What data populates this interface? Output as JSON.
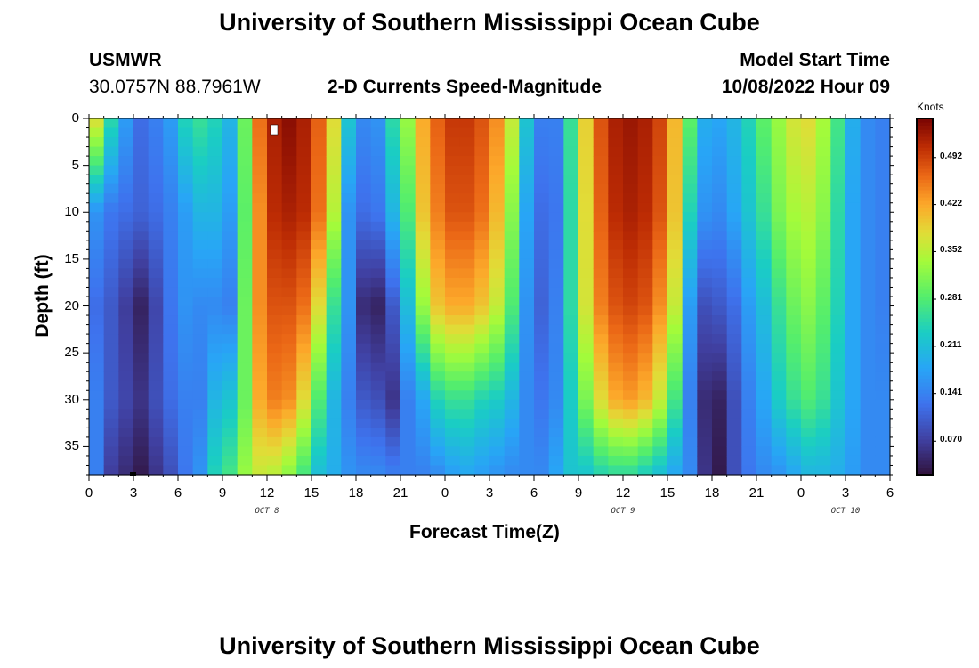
{
  "chart_data": {
    "type": "heatmap",
    "title": "University of Southern Mississippi Ocean Cube",
    "station": "USMWR",
    "location": "30.0757N  88.7961W",
    "subtitle": "2-D Currents Speed-Magnitude",
    "model_start_label": "Model Start Time",
    "model_start_value": "10/08/2022 Hour 09",
    "xlabel": "Forecast Time(Z)",
    "ylabel": "Depth (ft)",
    "x_range_hours": [
      0,
      54
    ],
    "x_tick_values": [
      0,
      3,
      6,
      9,
      12,
      15,
      18,
      21,
      24,
      27,
      30,
      33,
      36,
      39,
      42,
      45,
      48,
      51,
      54
    ],
    "x_tick_labels": [
      "0",
      "3",
      "6",
      "9",
      "12",
      "15",
      "18",
      "21",
      "0",
      "3",
      "6",
      "9",
      "12",
      "15",
      "18",
      "21",
      "0",
      "3",
      "6"
    ],
    "date_labels": [
      {
        "text": "OCT 8",
        "hour": 12
      },
      {
        "text": "OCT 9",
        "hour": 36
      },
      {
        "text": "OCT 10",
        "hour": 51
      }
    ],
    "y_range_ft": [
      0,
      38
    ],
    "y_ticks": [
      0,
      5,
      10,
      15,
      20,
      25,
      30,
      35
    ],
    "colorbar": {
      "label": "Knots",
      "range": [
        0.02,
        0.55
      ],
      "ticks": [
        "0.492",
        "0.422",
        "0.352",
        "0.281",
        "0.211",
        "0.141",
        "0.070"
      ],
      "tick_values": [
        0.492,
        0.422,
        0.352,
        0.281,
        0.211,
        0.141,
        0.07
      ]
    },
    "speed_field_knots": {
      "description": "approximate current speed by hour (rows) vs depth samples",
      "depth_samples_ft": [
        0,
        10,
        20,
        30,
        38
      ],
      "hours": [
        0,
        1,
        2,
        3,
        4,
        5,
        6,
        7,
        8,
        9,
        10,
        11,
        12,
        13,
        14,
        15,
        16,
        17,
        18,
        19,
        20,
        21,
        22,
        23,
        24,
        25,
        26,
        27,
        28,
        29,
        30,
        31,
        32,
        33,
        34,
        35,
        36,
        37,
        38,
        39,
        40,
        41,
        42,
        43,
        44,
        45,
        46,
        47,
        48,
        49,
        50,
        51,
        52,
        53
      ],
      "values": [
        [
          0.38,
          0.16,
          0.12,
          0.14,
          0.14
        ],
        [
          0.25,
          0.13,
          0.1,
          0.1,
          0.07
        ],
        [
          0.17,
          0.12,
          0.07,
          0.08,
          0.05
        ],
        [
          0.12,
          0.11,
          0.04,
          0.06,
          0.03
        ],
        [
          0.14,
          0.12,
          0.08,
          0.09,
          0.06
        ],
        [
          0.17,
          0.14,
          0.13,
          0.12,
          0.09
        ],
        [
          0.24,
          0.17,
          0.16,
          0.14,
          0.13
        ],
        [
          0.26,
          0.2,
          0.15,
          0.14,
          0.16
        ],
        [
          0.24,
          0.2,
          0.15,
          0.2,
          0.24
        ],
        [
          0.2,
          0.17,
          0.14,
          0.22,
          0.27
        ],
        [
          0.3,
          0.29,
          0.3,
          0.3,
          0.33
        ],
        [
          0.46,
          0.44,
          0.44,
          0.42,
          0.36
        ],
        [
          0.52,
          0.51,
          0.48,
          0.45,
          0.35
        ],
        [
          0.54,
          0.52,
          0.48,
          0.44,
          0.32
        ],
        [
          0.52,
          0.51,
          0.46,
          0.38,
          0.27
        ],
        [
          0.47,
          0.46,
          0.38,
          0.28,
          0.21
        ],
        [
          0.38,
          0.35,
          0.26,
          0.2,
          0.19
        ],
        [
          0.22,
          0.16,
          0.16,
          0.14,
          0.16
        ],
        [
          0.15,
          0.12,
          0.05,
          0.1,
          0.15
        ],
        [
          0.16,
          0.13,
          0.04,
          0.09,
          0.15
        ],
        [
          0.25,
          0.2,
          0.1,
          0.06,
          0.14
        ],
        [
          0.33,
          0.28,
          0.21,
          0.14,
          0.14
        ],
        [
          0.42,
          0.4,
          0.33,
          0.18,
          0.14
        ],
        [
          0.47,
          0.45,
          0.4,
          0.24,
          0.15
        ],
        [
          0.5,
          0.48,
          0.42,
          0.26,
          0.17
        ],
        [
          0.5,
          0.48,
          0.42,
          0.26,
          0.18
        ],
        [
          0.48,
          0.46,
          0.4,
          0.24,
          0.17
        ],
        [
          0.44,
          0.41,
          0.36,
          0.23,
          0.16
        ],
        [
          0.36,
          0.32,
          0.28,
          0.2,
          0.15
        ],
        [
          0.22,
          0.18,
          0.16,
          0.15,
          0.15
        ],
        [
          0.14,
          0.12,
          0.11,
          0.13,
          0.15
        ],
        [
          0.14,
          0.13,
          0.14,
          0.15,
          0.18
        ],
        [
          0.26,
          0.25,
          0.25,
          0.23,
          0.22
        ],
        [
          0.39,
          0.38,
          0.37,
          0.31,
          0.22
        ],
        [
          0.48,
          0.47,
          0.45,
          0.38,
          0.24
        ],
        [
          0.52,
          0.51,
          0.48,
          0.42,
          0.25
        ],
        [
          0.53,
          0.52,
          0.49,
          0.43,
          0.25
        ],
        [
          0.52,
          0.51,
          0.48,
          0.41,
          0.23
        ],
        [
          0.49,
          0.48,
          0.44,
          0.36,
          0.21
        ],
        [
          0.41,
          0.4,
          0.36,
          0.27,
          0.18
        ],
        [
          0.29,
          0.24,
          0.17,
          0.14,
          0.15
        ],
        [
          0.19,
          0.16,
          0.09,
          0.05,
          0.06
        ],
        [
          0.18,
          0.15,
          0.1,
          0.04,
          0.03
        ],
        [
          0.2,
          0.18,
          0.12,
          0.09,
          0.09
        ],
        [
          0.24,
          0.22,
          0.17,
          0.14,
          0.13
        ],
        [
          0.29,
          0.26,
          0.21,
          0.18,
          0.15
        ],
        [
          0.33,
          0.31,
          0.26,
          0.23,
          0.16
        ],
        [
          0.37,
          0.34,
          0.3,
          0.26,
          0.18
        ],
        [
          0.38,
          0.35,
          0.32,
          0.28,
          0.2
        ],
        [
          0.34,
          0.32,
          0.29,
          0.26,
          0.2
        ],
        [
          0.27,
          0.25,
          0.24,
          0.22,
          0.19
        ],
        [
          0.19,
          0.18,
          0.18,
          0.18,
          0.17
        ],
        [
          0.15,
          0.15,
          0.15,
          0.15,
          0.15
        ],
        [
          0.14,
          0.14,
          0.14,
          0.15,
          0.15
        ]
      ]
    }
  },
  "footer": {
    "title": "University of Southern Mississippi Ocean Cube"
  },
  "colors": {
    "background": "#ffffff",
    "axis": "#000000"
  }
}
